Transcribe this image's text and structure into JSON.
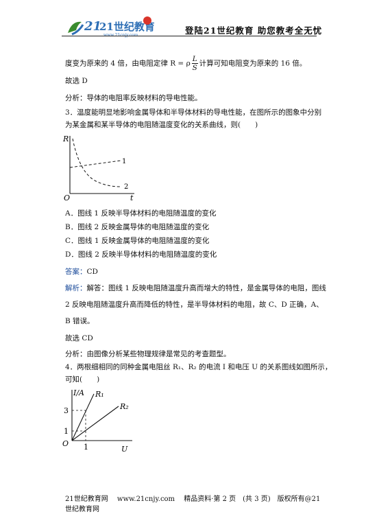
{
  "header": {
    "logo_text": "21世纪教育",
    "logo_url": "www.21cnjy.com",
    "slogan": "登陆21世纪教育   助您教考全无忧"
  },
  "content": {
    "line1_pre": "度变为原来的 4 倍，由电阻定律 R = ρ",
    "line1_frac_num": "L",
    "line1_frac_den": "S",
    "line1_post": "计算可知电阻变为原来的 16 倍。",
    "choose1": "故选 D",
    "analysis1": "分析：导体的电阻率反映材料的导电性能。",
    "q3_line1": "3．温度能明显地影响金属导体和半导体材料的导电性能，在图所示的图象中分别",
    "q3_line2": "为某金属和某半导体的电阻随温度变化的关系曲线，则(　　)",
    "graph1": {
      "y_label": "R",
      "x_label": "t",
      "origin": "O",
      "curve1": "1",
      "curve2": "2"
    },
    "options": [
      "A．图线 1 反映半导体材料的电阻随温度的变化",
      "B．图线 2 反映金属导体的电阻随温度的变化",
      "C．图线 1 反映金属导体的电阻随温度的变化",
      "D．图线 2 反映半导体材料的电阻随温度的变化"
    ],
    "answer_label": "答案：",
    "answer_value": "CD",
    "explain_label": "解析：",
    "explain_line1": "解答：图线 1 反映电阻随温度升高而增大的特性，是金属导体的电阻，图线",
    "explain_line2": "2 反映电阻随温度升高而降低的特性，是半导体材料的电阻，故 C、D 正确，A、",
    "explain_line3": "B 错误。",
    "choose2": "故选 CD",
    "analysis2": "分析：由图像分析某些物理规律是常见的考查题型。",
    "q4_line1": "4．两根细相同的同种金属电阻丝 R₁、R₂ 的电流 I 和电压 U 的关系图线如图所示，",
    "q4_line2": "可知(　　)",
    "graph2": {
      "y_label": "I/A",
      "x_label": "U",
      "origin": "O",
      "r1": "R₁",
      "r2": "R₂",
      "tick_y3": "3",
      "tick_y1": "1",
      "tick_x1": "1"
    }
  },
  "footer": {
    "text": "21世纪教育网　 www.21cnjy.com　 精品资料·第 2 页　(共 3 页)　版权所有@21世纪教育网"
  }
}
